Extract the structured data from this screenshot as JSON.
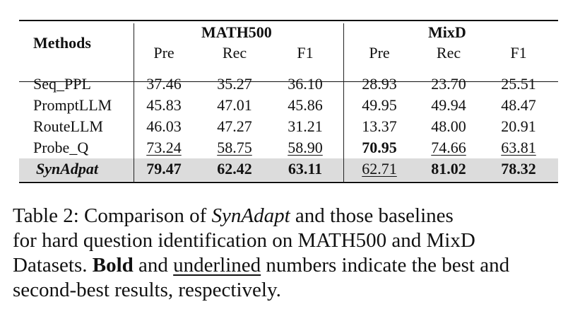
{
  "table": {
    "header": {
      "methods": "Methods",
      "groups": [
        "MATH500",
        "MixD"
      ],
      "metrics": [
        "Pre",
        "Rec",
        "F1",
        "Pre",
        "Rec",
        "F1"
      ]
    },
    "rows": [
      {
        "method": "Seq_PPL",
        "values": [
          "37.46",
          "35.27",
          "36.10",
          "28.93",
          "23.70",
          "25.51"
        ],
        "styles": [
          "",
          "",
          "",
          "",
          "",
          ""
        ]
      },
      {
        "method": "PromptLLM",
        "values": [
          "45.83",
          "47.01",
          "45.86",
          "49.95",
          "49.94",
          "48.47"
        ],
        "styles": [
          "",
          "",
          "",
          "",
          "",
          ""
        ]
      },
      {
        "method": "RouteLLM",
        "values": [
          "46.03",
          "47.27",
          "31.21",
          "13.37",
          "48.00",
          "20.91"
        ],
        "styles": [
          "",
          "",
          "",
          "",
          "",
          ""
        ]
      },
      {
        "method": "Probe_Q",
        "values": [
          "73.24",
          "58.75",
          "58.90",
          "70.95",
          "74.66",
          "63.81"
        ],
        "styles": [
          "ul",
          "ul",
          "ul",
          "bold",
          "ul",
          "ul"
        ]
      },
      {
        "method": "SynAdpat",
        "values": [
          "79.47",
          "62.42",
          "63.11",
          "62.71",
          "81.02",
          "78.32"
        ],
        "styles": [
          "bold",
          "bold",
          "bold",
          "ul",
          "bold",
          "bold"
        ],
        "highlight": true
      }
    ]
  },
  "caption": {
    "label": "Table 2:",
    "text_1": " Comparison of ",
    "name": "SynAdapt",
    "text_2": " and those baselines",
    "line2": "for hard question identification on MATH500 and MixD",
    "line3_a": "Datasets. ",
    "bold_word": "Bold",
    "line3_b": " and ",
    "underlined_word": "underlined",
    "line3_c": " numbers indicate the best and",
    "line4": "second-best results, respectively."
  }
}
